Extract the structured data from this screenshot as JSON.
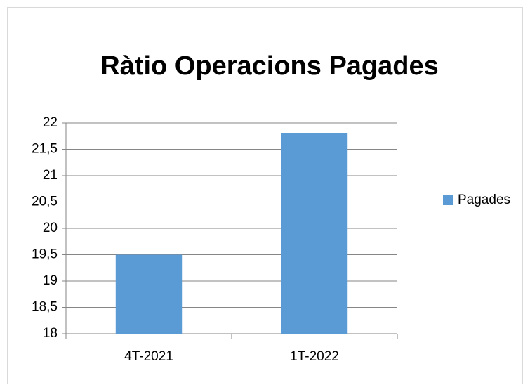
{
  "chart_data": {
    "type": "bar",
    "title": "Ràtio Operacions Pagades",
    "categories": [
      "4T-2021",
      "1T-2022"
    ],
    "series": [
      {
        "name": "Pagades",
        "color": "#5b9bd5",
        "values": [
          19.5,
          21.8
        ]
      }
    ],
    "ylim": [
      18,
      22
    ],
    "yticks": [
      18,
      {
        "value": 18.5,
        "label": "18,5"
      },
      19,
      {
        "value": 19.5,
        "label": "19,5"
      },
      20,
      {
        "value": 20.5,
        "label": "20,5"
      },
      21,
      {
        "value": 21.5,
        "label": "21,5"
      },
      22
    ],
    "grid": true,
    "legend": "right"
  }
}
